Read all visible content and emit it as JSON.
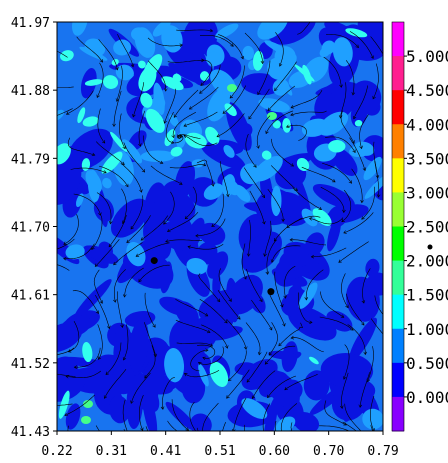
{
  "map": {
    "y_ticks": [
      "41.97",
      "41.88",
      "41.79",
      "41.70",
      "41.61",
      "41.52",
      "41.43"
    ],
    "x_ticks": [
      "0.22",
      "0.31",
      "0.41",
      "0.51",
      "0.60",
      "0.70",
      "0.79"
    ],
    "y_range": [
      41.43,
      41.97
    ],
    "x_range": [
      0.22,
      0.79
    ],
    "points": [
      {
        "lon": 0.39,
        "lat": 41.655
      },
      {
        "lon": 0.594,
        "lat": 41.614
      }
    ],
    "field": "filled contours with overlaid streamlines"
  },
  "colorbar": {
    "labels": [
      "5.000",
      "4.500",
      "4.000",
      "3.500",
      "3.000",
      "2.500",
      "2.000",
      "1.500",
      "1.000",
      "0.500",
      "0.000"
    ],
    "colors": [
      "#ff00ff",
      "#ff1f8f",
      "#ff0000",
      "#ff8000",
      "#ffff00",
      "#99ff33",
      "#00ff00",
      "#33ff99",
      "#00ffff",
      "#0080ff",
      "#0000ff",
      "#8800ff"
    ],
    "levels": [
      5.0,
      4.5,
      4.0,
      3.5,
      3.0,
      2.5,
      2.0,
      1.5,
      1.0,
      0.5,
      0.0
    ]
  }
}
